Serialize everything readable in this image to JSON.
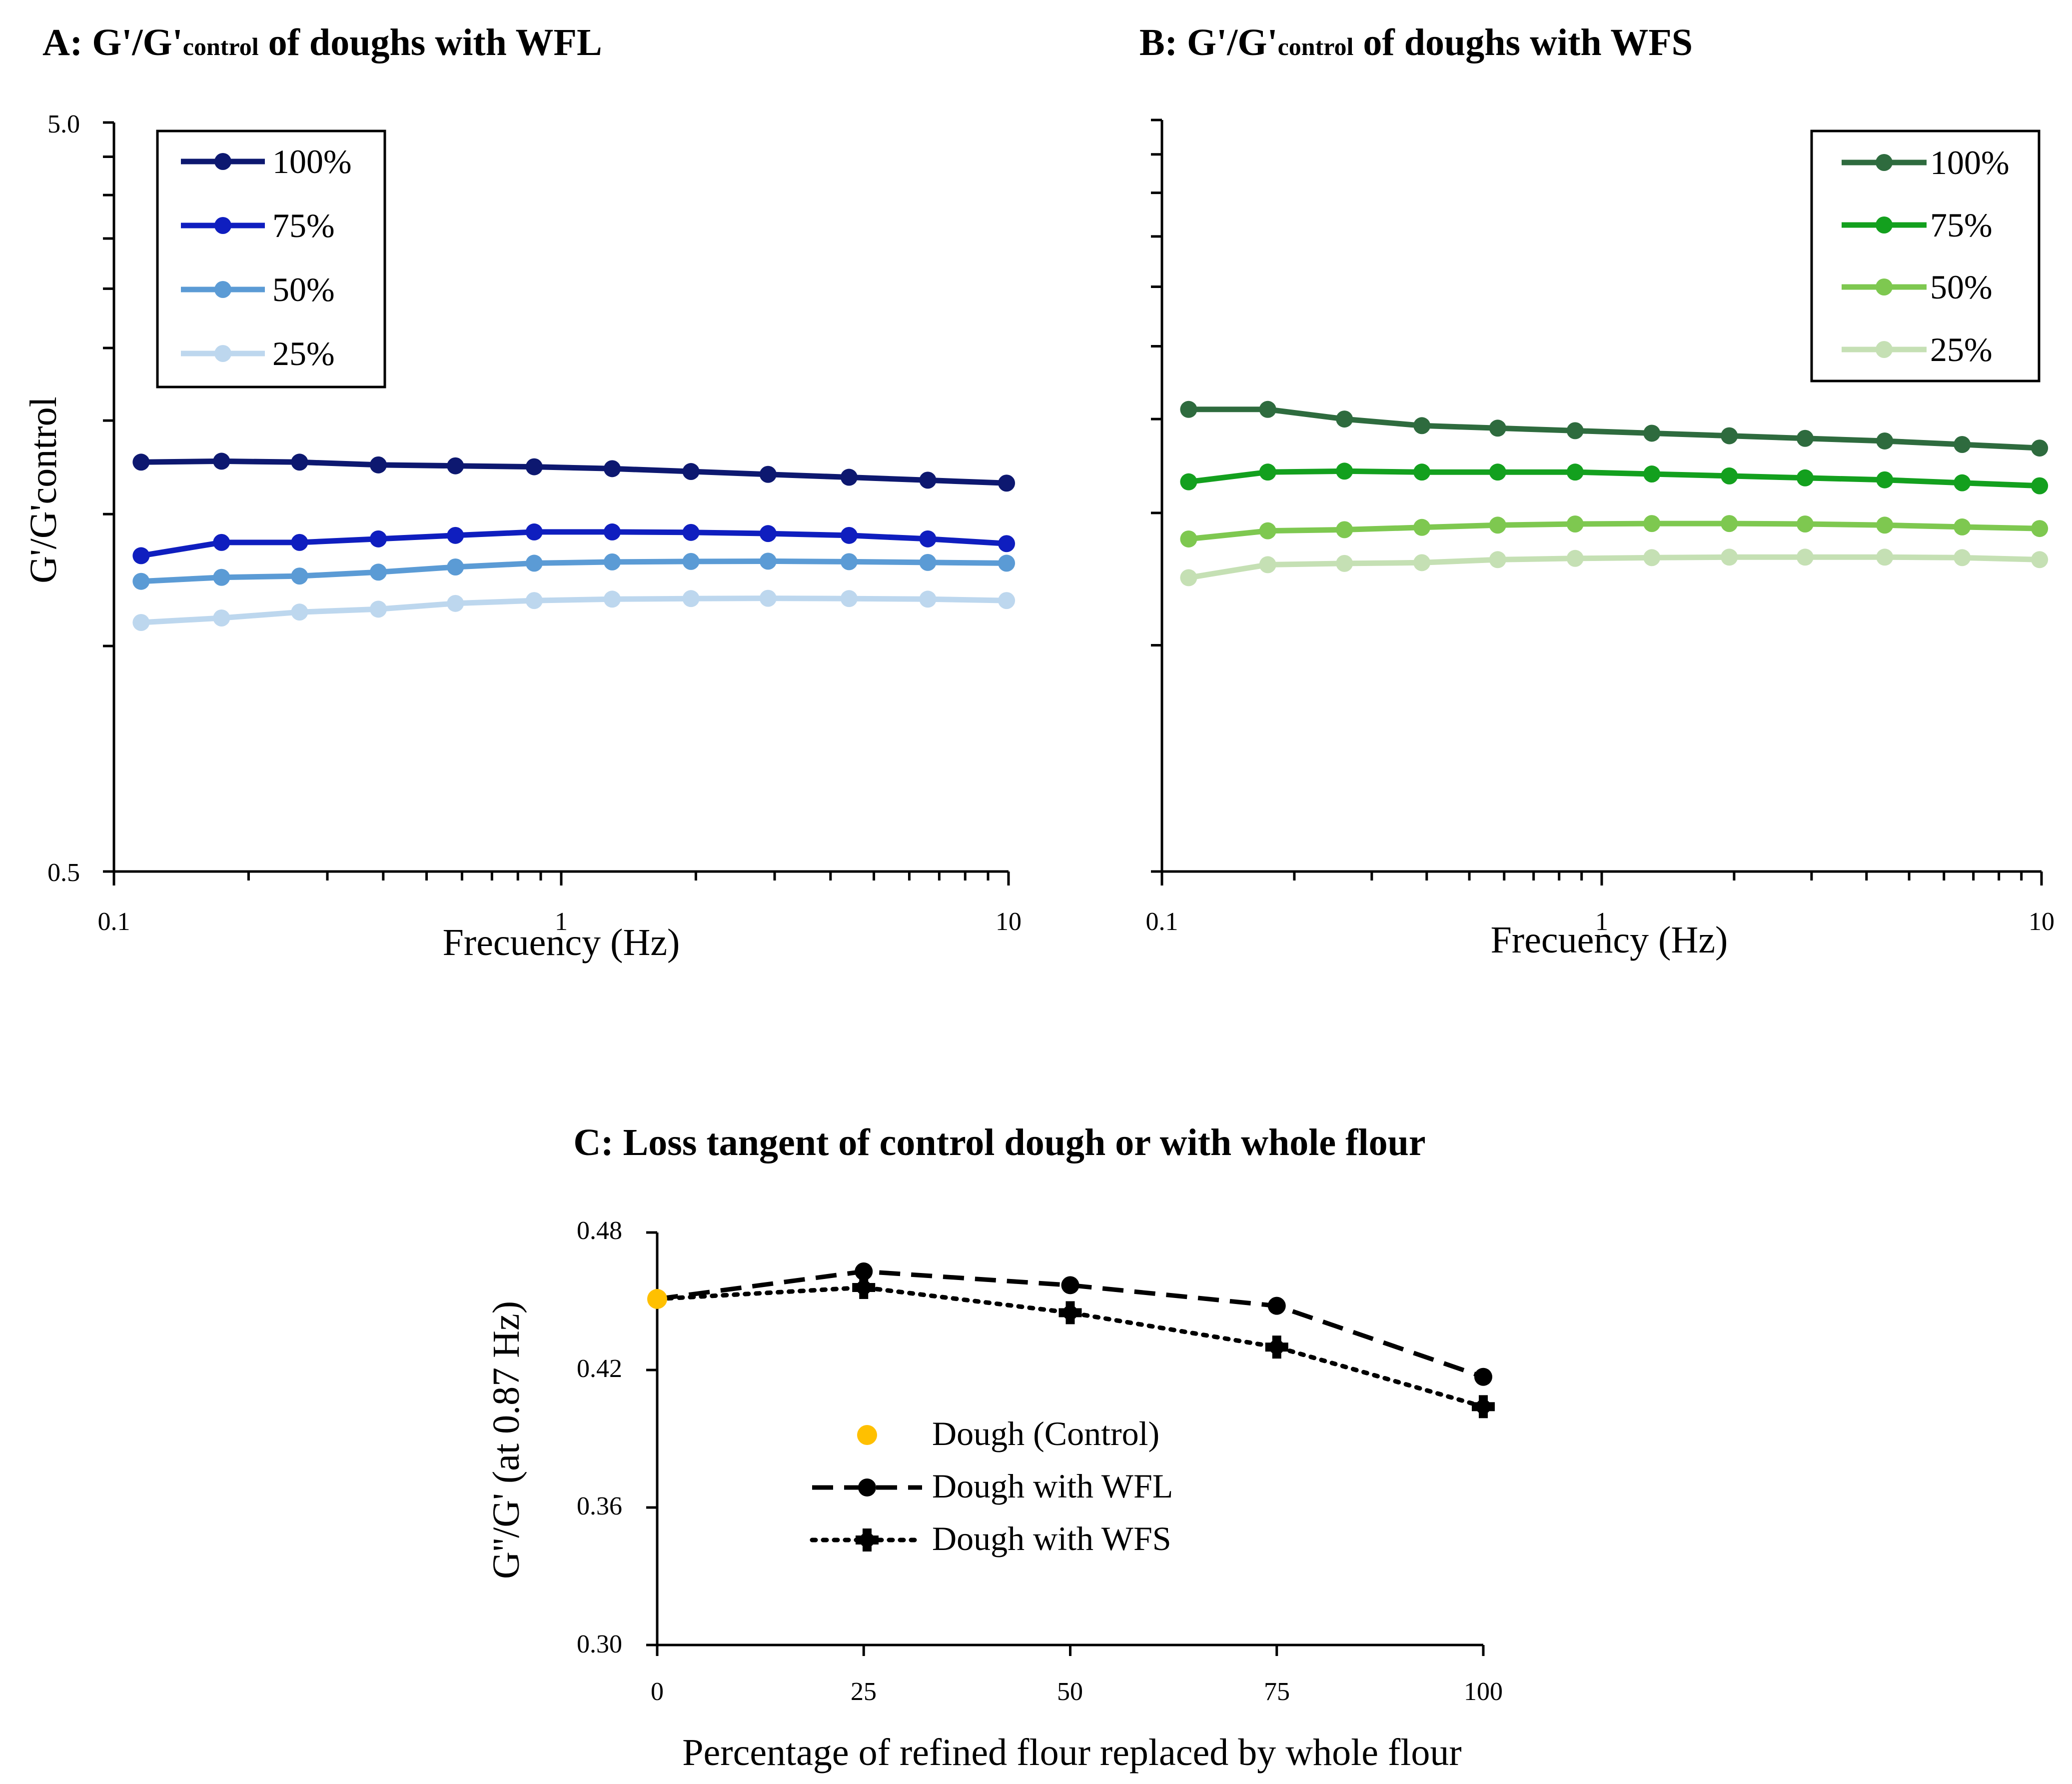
{
  "chart_data": [
    {
      "id": "A",
      "type": "line",
      "title_main": "A: G'/G'",
      "title_sub": "control",
      "title_end": " of doughs with WFL",
      "xlabel": "Frecuency (Hz)",
      "ylabel": "G'/G'control",
      "xscale": "log",
      "yscale": "log",
      "xlim": [
        0.1,
        10
      ],
      "ylim": [
        0.5,
        5.0
      ],
      "xtick_labels": [
        "0.1",
        "1",
        "10"
      ],
      "ytick_labels": [
        "5.0",
        "0.5"
      ],
      "legend_position": "top-left",
      "x": [
        0.115,
        0.174,
        0.26,
        0.39,
        0.58,
        0.87,
        1.3,
        1.95,
        2.9,
        4.4,
        6.6,
        9.9
      ],
      "series": [
        {
          "name": "100%",
          "color": "#0d1870",
          "values": [
            1.76,
            1.765,
            1.76,
            1.745,
            1.74,
            1.735,
            1.725,
            1.71,
            1.695,
            1.68,
            1.665,
            1.65
          ]
        },
        {
          "name": "75%",
          "color": "#0f1ebf",
          "values": [
            1.32,
            1.375,
            1.375,
            1.39,
            1.405,
            1.42,
            1.42,
            1.418,
            1.413,
            1.405,
            1.39,
            1.37
          ]
        },
        {
          "name": "50%",
          "color": "#5b9bd5",
          "values": [
            1.22,
            1.235,
            1.24,
            1.255,
            1.275,
            1.29,
            1.295,
            1.297,
            1.298,
            1.296,
            1.293,
            1.29
          ]
        },
        {
          "name": "25%",
          "color": "#bdd7ee",
          "values": [
            1.075,
            1.09,
            1.11,
            1.12,
            1.14,
            1.15,
            1.155,
            1.157,
            1.158,
            1.157,
            1.155,
            1.15
          ]
        }
      ]
    },
    {
      "id": "B",
      "type": "line",
      "title_main": "B: G'/G'",
      "title_sub": "control",
      "title_end": " of doughs with WFS",
      "xlabel": "Frecuency (Hz)",
      "ylabel": "",
      "xscale": "log",
      "yscale": "log",
      "xlim": [
        0.1,
        10
      ],
      "ylim": [
        0.5,
        5.0
      ],
      "xtick_labels": [
        "0.1",
        "1",
        "10"
      ],
      "ytick_labels": [],
      "legend_position": "top-right",
      "x": [
        0.115,
        0.174,
        0.26,
        0.39,
        0.58,
        0.87,
        1.3,
        1.95,
        2.9,
        4.4,
        6.6,
        9.9
      ],
      "series": [
        {
          "name": "100%",
          "color": "#2e6b3e",
          "values": [
            2.06,
            2.06,
            2.0,
            1.96,
            1.945,
            1.93,
            1.915,
            1.9,
            1.885,
            1.87,
            1.85,
            1.83
          ]
        },
        {
          "name": "75%",
          "color": "#13a01e",
          "values": [
            1.65,
            1.7,
            1.705,
            1.7,
            1.7,
            1.7,
            1.69,
            1.68,
            1.67,
            1.66,
            1.645,
            1.63
          ]
        },
        {
          "name": "50%",
          "color": "#7ec850",
          "values": [
            1.385,
            1.42,
            1.425,
            1.435,
            1.445,
            1.45,
            1.452,
            1.452,
            1.45,
            1.445,
            1.437,
            1.43
          ]
        },
        {
          "name": "25%",
          "color": "#c5e0b4",
          "values": [
            1.23,
            1.28,
            1.285,
            1.288,
            1.3,
            1.305,
            1.308,
            1.31,
            1.31,
            1.31,
            1.308,
            1.3
          ]
        }
      ]
    },
    {
      "id": "C",
      "type": "line",
      "title": "C: Loss tangent of control dough or with whole flour",
      "xlabel": "Percentage of refined flour replaced by whole flour",
      "ylabel": "G''/G' (at 0.87 Hz)",
      "xlim": [
        0,
        100
      ],
      "ylim": [
        0.3,
        0.48
      ],
      "xtick_labels": [
        "0",
        "25",
        "50",
        "75",
        "100"
      ],
      "ytick_labels": [
        "0.48",
        "0.42",
        "0.36",
        "0.30"
      ],
      "legend_position": "center",
      "control": {
        "name": "Dough (Control)",
        "color": "#ffc000",
        "x": 0,
        "value": 0.451
      },
      "series": [
        {
          "name": "Dough with WFL",
          "style": "dashed",
          "color": "#000000",
          "x": [
            0,
            25,
            50,
            75,
            100
          ],
          "values": [
            0.451,
            0.463,
            0.457,
            0.448,
            0.417
          ]
        },
        {
          "name": "Dough with WFS",
          "style": "dotted",
          "color": "#000000",
          "x": [
            0,
            25,
            50,
            75,
            100
          ],
          "values": [
            0.451,
            0.456,
            0.445,
            0.43,
            0.404
          ]
        }
      ]
    }
  ]
}
